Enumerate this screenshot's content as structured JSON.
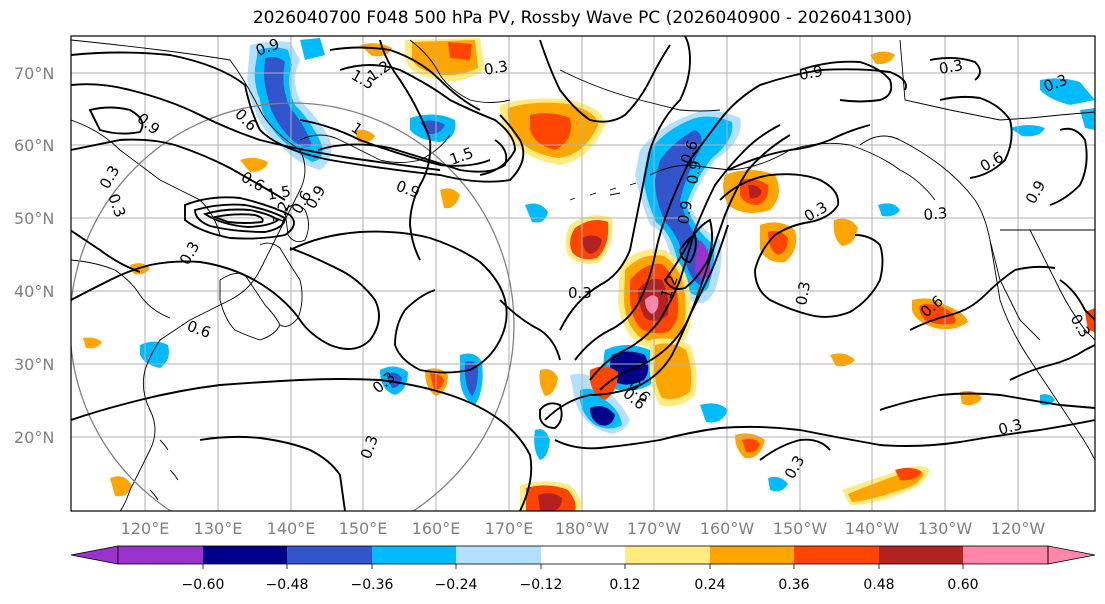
{
  "title": "2026040700 F048 500 hPa PV, Rossby Wave PC (2026040900 - 2026041300)",
  "lat_labels": [
    "70°N",
    "60°N",
    "50°N",
    "40°N",
    "30°N",
    "20°N"
  ],
  "lon_labels": [
    "120°E",
    "130°E",
    "140°E",
    "150°E",
    "160°E",
    "170°E",
    "180°W",
    "170°W",
    "160°W",
    "150°W",
    "140°W",
    "130°W",
    "120°W"
  ],
  "colorbar": {
    "colors": [
      "#9933cc",
      "#000088",
      "#3355cc",
      "#00bbff",
      "#b3e0ff",
      "#ffffff",
      "#ffeb80",
      "#ffa500",
      "#ff4500",
      "#b22222",
      "#ff85a9"
    ],
    "labels": [
      "−0.60",
      "−0.48",
      "−0.36",
      "−0.24",
      "−0.12",
      "0.12",
      "0.24",
      "0.36",
      "0.48",
      "0.60"
    ]
  },
  "contour_labels": [
    "0.9",
    "1.5",
    "1.2",
    "1",
    "0.6",
    "1.5",
    "0.9",
    "0.3",
    "0.9",
    "0.6",
    "1.5",
    "1.2",
    "0.6",
    "0.9",
    "0.3",
    "0.3",
    "0.9",
    "0.3",
    "0.3",
    "0.6",
    "0.9",
    "0.3",
    "0.3",
    "0.9",
    "0.9",
    "0.3",
    "0.3",
    "0.6",
    "0.6",
    "0.3",
    "0.3",
    "0.6",
    "0.3",
    "0.3",
    "0.3",
    "0.3",
    "0.6",
    "1.2",
    "0.6"
  ]
}
